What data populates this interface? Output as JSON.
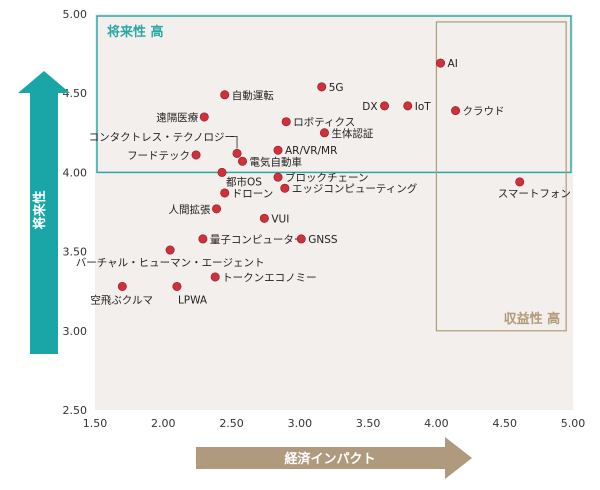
{
  "chart_data": {
    "type": "scatter",
    "xlabel": "経済インパクト",
    "ylabel": "将来性",
    "xlim": [
      1.5,
      5.0
    ],
    "ylim": [
      2.5,
      5.0
    ],
    "xticks": [
      "1.50",
      "2.00",
      "2.50",
      "3.00",
      "3.50",
      "4.00",
      "4.50",
      "5.00"
    ],
    "yticks": [
      "2.50",
      "3.00",
      "3.50",
      "4.00",
      "4.50",
      "5.00"
    ],
    "grid": false,
    "regions": [
      {
        "label": "将来性 高",
        "x0": 1.5,
        "x1": 5.0,
        "y0": 4.0,
        "y1": 5.0,
        "color": "#2aa8a8"
      },
      {
        "label": "収益性 高",
        "x0": 4.0,
        "x1": 4.95,
        "y0": 3.0,
        "y1": 4.95,
        "color": "#b09a78"
      }
    ],
    "point_color": "#d0303a",
    "points": [
      {
        "label": "AI",
        "x": 4.03,
        "y": 4.69
      },
      {
        "label": "5G",
        "x": 3.16,
        "y": 4.54
      },
      {
        "label": "自動運転",
        "x": 2.45,
        "y": 4.49
      },
      {
        "label": "DX",
        "x": 3.62,
        "y": 4.42
      },
      {
        "label": "IoT",
        "x": 3.79,
        "y": 4.42
      },
      {
        "label": "クラウド",
        "x": 4.14,
        "y": 4.39
      },
      {
        "label": "遠隔医療",
        "x": 2.3,
        "y": 4.35
      },
      {
        "label": "ロボティクス",
        "x": 2.9,
        "y": 4.32
      },
      {
        "label": "生体認証",
        "x": 3.18,
        "y": 4.25
      },
      {
        "label": "コンタクトレス・テクノロジー",
        "x": 2.54,
        "y": 4.12
      },
      {
        "label": "AR/VR/MR",
        "x": 2.84,
        "y": 4.14
      },
      {
        "label": "フードテック",
        "x": 2.24,
        "y": 4.11
      },
      {
        "label": "電気自動車",
        "x": 2.58,
        "y": 4.07
      },
      {
        "label": "都市OS",
        "x": 2.43,
        "y": 4.0
      },
      {
        "label": "ブロックチェーン",
        "x": 2.84,
        "y": 3.97
      },
      {
        "label": "スマートフォン",
        "x": 4.61,
        "y": 3.94
      },
      {
        "label": "エッジコンピューティング",
        "x": 2.89,
        "y": 3.9
      },
      {
        "label": "ドローン",
        "x": 2.45,
        "y": 3.87
      },
      {
        "label": "人間拡張",
        "x": 2.39,
        "y": 3.77
      },
      {
        "label": "VUI",
        "x": 2.74,
        "y": 3.71
      },
      {
        "label": "量子コンピューター",
        "x": 2.29,
        "y": 3.58
      },
      {
        "label": "GNSS",
        "x": 3.01,
        "y": 3.58
      },
      {
        "label": "バーチャル・ヒューマン・エージェント",
        "x": 2.05,
        "y": 3.51
      },
      {
        "label": "トークンエコノミー",
        "x": 2.38,
        "y": 3.34
      },
      {
        "label": "空飛ぶクルマ",
        "x": 1.7,
        "y": 3.28
      },
      {
        "label": "LPWA",
        "x": 2.1,
        "y": 3.28
      }
    ]
  }
}
